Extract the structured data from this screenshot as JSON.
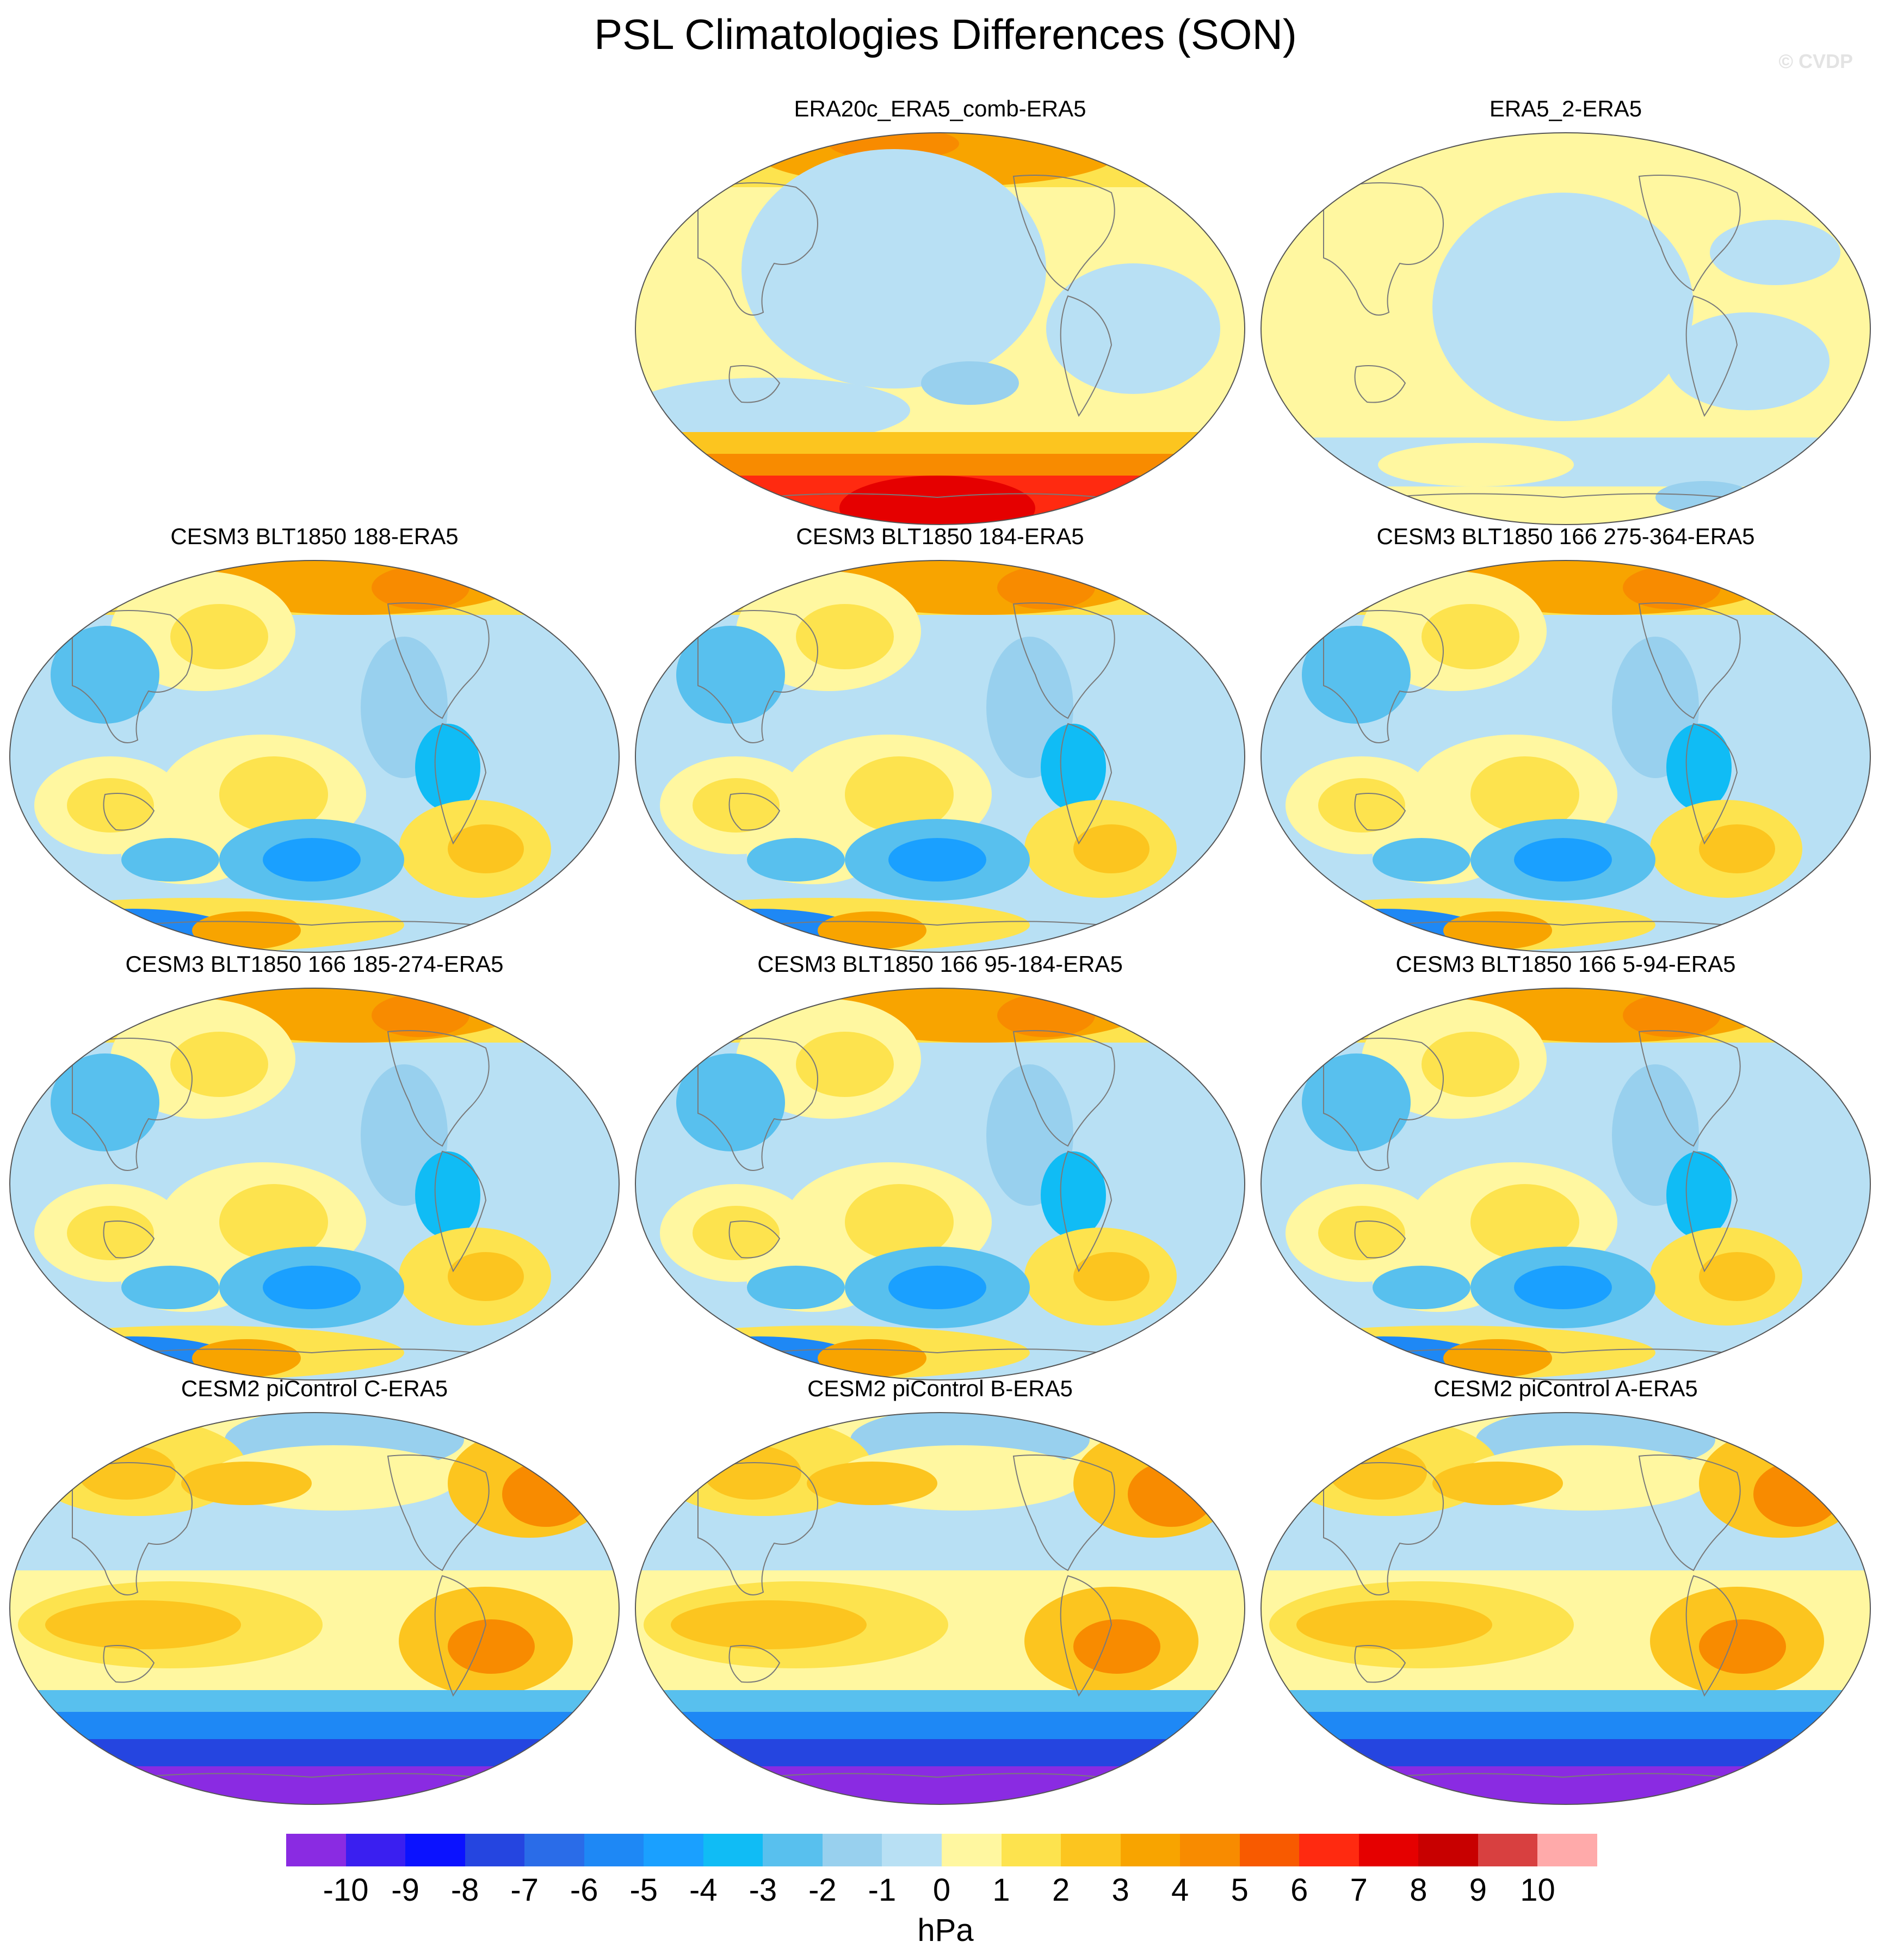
{
  "title": "PSL Climatologies Differences (SON)",
  "watermark": "© CVDP",
  "panels": [
    {
      "title": "ERA20c_ERA5_comb-ERA5",
      "pattern": "era20c"
    },
    {
      "title": "ERA5_2-ERA5",
      "pattern": "era5_2"
    },
    {
      "title": "CESM3 BLT1850 188-ERA5",
      "pattern": "cesm3"
    },
    {
      "title": "CESM3 BLT1850 184-ERA5",
      "pattern": "cesm3"
    },
    {
      "title": "CESM3 BLT1850 166 275-364-ERA5",
      "pattern": "cesm3"
    },
    {
      "title": "CESM3 BLT1850 166 185-274-ERA5",
      "pattern": "cesm3"
    },
    {
      "title": "CESM3 BLT1850 166 95-184-ERA5",
      "pattern": "cesm3"
    },
    {
      "title": "CESM3 BLT1850 166 5-94-ERA5",
      "pattern": "cesm3"
    },
    {
      "title": "CESM2 piControl C-ERA5",
      "pattern": "cesm2"
    },
    {
      "title": "CESM2 piControl B-ERA5",
      "pattern": "cesm2"
    },
    {
      "title": "CESM2 piControl A-ERA5",
      "pattern": "cesm2"
    }
  ],
  "colorbar": {
    "labels": [
      "-10",
      "-9",
      "-8",
      "-7",
      "-6",
      "-5",
      "-4",
      "-3",
      "-2",
      "-1",
      "0",
      "1",
      "2",
      "3",
      "4",
      "5",
      "6",
      "7",
      "8",
      "9",
      "10"
    ],
    "colors": [
      "#8a2be2",
      "#3a1ff0",
      "#0b12ff",
      "#2545e0",
      "#2a6ce8",
      "#1e88f5",
      "#1aa0ff",
      "#10bcf5",
      "#58c0ee",
      "#98d0ee",
      "#b8e0f4",
      "#fff7a0",
      "#fde34e",
      "#fcc51f",
      "#f8a400",
      "#f88b00",
      "#f85a00",
      "#ff2a10",
      "#e50000",
      "#c80000",
      "#d84040",
      "#ffaaaa"
    ],
    "units": "hPa"
  }
}
